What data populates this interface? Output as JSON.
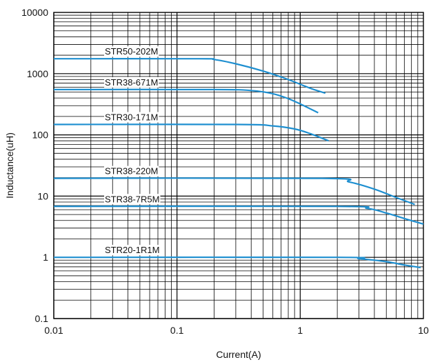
{
  "chart_data": {
    "type": "line",
    "xlabel": "Current(A)",
    "ylabel": "Inductance(uH)",
    "x_scale": "log",
    "y_scale": "log",
    "xlim": [
      0.01,
      10
    ],
    "ylim": [
      0.1,
      10000
    ],
    "grid": true,
    "x_ticks": [
      "0.01",
      "0.1",
      "1",
      "10"
    ],
    "y_ticks": [
      "0.1",
      "1",
      "10",
      "100",
      "1000",
      "10000"
    ],
    "line_color": "#1e8fd0",
    "series": [
      {
        "name": "STR50-202M",
        "x": [
          0.01,
          0.15,
          0.2,
          0.3,
          0.5,
          0.8,
          1.2,
          1.6
        ],
        "y": [
          1750,
          1750,
          1700,
          1450,
          1100,
          800,
          580,
          480
        ]
      },
      {
        "name": "STR38-671M",
        "x": [
          0.01,
          0.2,
          0.4,
          0.6,
          0.8,
          1.0,
          1.4
        ],
        "y": [
          550,
          550,
          530,
          470,
          390,
          320,
          230
        ]
      },
      {
        "name": "STR30-171M",
        "x": [
          0.01,
          0.3,
          0.6,
          0.9,
          1.2,
          1.7
        ],
        "y": [
          148,
          148,
          140,
          125,
          105,
          80
        ]
      },
      {
        "name": "STR38-220M",
        "x": [
          0.01,
          1.5,
          2.5,
          4,
          6,
          8.5
        ],
        "y": [
          19.5,
          19.5,
          17,
          13,
          9.5,
          7.3
        ]
      },
      {
        "name": "STR38-7R5M",
        "x": [
          0.01,
          2.0,
          3.5,
          5,
          7,
          10
        ],
        "y": [
          6.8,
          6.8,
          6.3,
          5.3,
          4.3,
          3.5
        ]
      },
      {
        "name": "STR20-1R1M",
        "x": [
          0.01,
          2.0,
          3.0,
          5,
          7,
          9.5
        ],
        "y": [
          1.0,
          1.0,
          0.95,
          0.85,
          0.75,
          0.68
        ]
      }
    ]
  }
}
